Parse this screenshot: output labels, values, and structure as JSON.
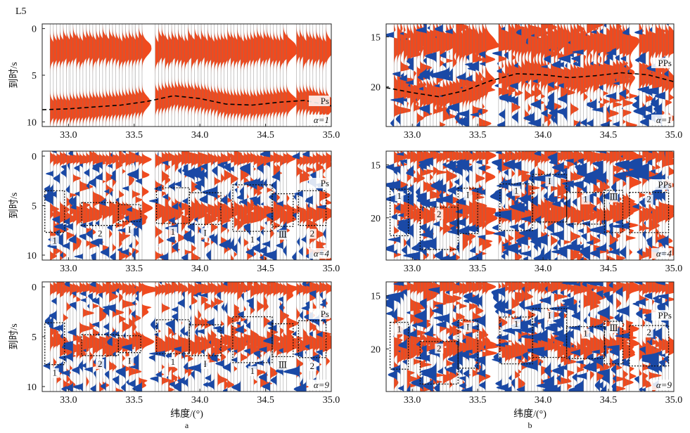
{
  "colors": {
    "positive": "#f04a1e",
    "negative": "#1a49a6",
    "frame": "#222222",
    "box": "#111111",
    "curve": "#000000"
  },
  "xlabel": "纬度/(°)",
  "station": "L5",
  "panel_labels": [
    "a",
    "b"
  ],
  "chart_data": [
    {
      "type": "wiggle-section",
      "id": "a1",
      "column": "a",
      "row": 1,
      "x_ticks": [
        "33.0",
        "33.5",
        "34.0",
        "34.5",
        "35.0"
      ],
      "xlim": [
        32.8,
        35.0
      ],
      "y_ticks": [
        "0",
        "5",
        "10"
      ],
      "ylim": [
        -0.5,
        10.5
      ],
      "ylabel": "到时/s",
      "phase": "Ps",
      "alpha": "α=1",
      "station": "L5",
      "pulse_times": [
        2.2,
        8.2
      ],
      "curve": {
        "x": [
          32.8,
          33.0,
          33.2,
          33.4,
          33.6,
          33.8,
          34.0,
          34.2,
          34.4,
          34.6,
          34.8,
          35.0
        ],
        "y": [
          8.7,
          8.6,
          8.4,
          8.2,
          7.8,
          7.2,
          7.5,
          8.1,
          8.2,
          7.9,
          7.7,
          8.3
        ]
      },
      "boxes": []
    },
    {
      "type": "wiggle-section",
      "id": "a2",
      "column": "a",
      "row": 2,
      "x_ticks": [
        "33.0",
        "33.5",
        "34.0",
        "34.5",
        "35.0"
      ],
      "xlim": [
        32.8,
        35.0
      ],
      "y_ticks": [
        "0",
        "5",
        "10"
      ],
      "ylim": [
        -0.5,
        10.5
      ],
      "ylabel": "到时/s",
      "phase": "Ps",
      "alpha": "α=4",
      "pulse_times": [
        0.3,
        5.8
      ],
      "boxes": [
        {
          "label": "1",
          "x0": 32.82,
          "x1": 32.97,
          "t0": 3.5,
          "t1": 7.7
        },
        {
          "label": "2",
          "x0": 33.1,
          "x1": 33.38,
          "t0": 4.7,
          "t1": 7.0
        },
        {
          "label": "I",
          "x0": 33.38,
          "x1": 33.55,
          "t0": 4.9,
          "t1": 6.6
        },
        {
          "label": "1",
          "x0": 33.67,
          "x1": 33.92,
          "t0": 3.2,
          "t1": 6.8
        },
        {
          "label": "I",
          "x0": 33.92,
          "x1": 34.16,
          "t0": 3.7,
          "t1": 6.9
        },
        {
          "label": "1",
          "x0": 34.25,
          "x1": 34.55,
          "t0": 2.9,
          "t1": 7.6
        },
        {
          "label": "Ⅲ",
          "x0": 34.55,
          "x1": 34.71,
          "t0": 3.8,
          "t1": 7.1
        },
        {
          "label": "2",
          "x0": 34.75,
          "x1": 34.96,
          "t0": 3.5,
          "t1": 7.0
        }
      ]
    },
    {
      "type": "wiggle-section",
      "id": "a3",
      "column": "a",
      "row": 3,
      "x_ticks": [
        "33.0",
        "33.5",
        "34.0",
        "34.5",
        "35.0"
      ],
      "xlim": [
        32.8,
        35.0
      ],
      "y_ticks": [
        "0",
        "5",
        "10"
      ],
      "ylim": [
        -0.5,
        10.5
      ],
      "ylabel": "到时/s",
      "phase": "Ps",
      "alpha": "α=9",
      "show_xlabel": true,
      "panel_label": "a",
      "pulse_times": [
        0.2,
        5.8
      ],
      "boxes": [
        {
          "label": "1",
          "x0": 32.82,
          "x1": 32.97,
          "t0": 3.6,
          "t1": 7.8
        },
        {
          "label": "2",
          "x0": 33.1,
          "x1": 33.38,
          "t0": 4.8,
          "t1": 6.9
        },
        {
          "label": "I",
          "x0": 33.38,
          "x1": 33.55,
          "t0": 4.9,
          "t1": 6.6
        },
        {
          "label": "1",
          "x0": 33.67,
          "x1": 33.92,
          "t0": 3.3,
          "t1": 6.7
        },
        {
          "label": "I",
          "x0": 33.92,
          "x1": 34.16,
          "t0": 3.8,
          "t1": 6.9
        },
        {
          "label": "1",
          "x0": 34.25,
          "x1": 34.55,
          "t0": 3.0,
          "t1": 7.6
        },
        {
          "label": "Ⅲ",
          "x0": 34.55,
          "x1": 34.71,
          "t0": 3.7,
          "t1": 7.0
        },
        {
          "label": "2",
          "x0": 34.75,
          "x1": 34.96,
          "t0": 3.4,
          "t1": 7.1
        }
      ]
    },
    {
      "type": "wiggle-section",
      "id": "b1",
      "column": "b",
      "row": 1,
      "x_ticks": [
        "33.0",
        "33.5",
        "34.0",
        "34.5",
        "35.0"
      ],
      "xlim": [
        32.8,
        35.0
      ],
      "y_ticks": [
        "15",
        "20"
      ],
      "ylim": [
        13.7,
        24.0
      ],
      "phase": "PPs",
      "alpha": "α=1",
      "pulse_times": [
        15.5,
        20.3
      ],
      "curve": {
        "x": [
          32.8,
          33.0,
          33.2,
          33.4,
          33.6,
          33.8,
          34.0,
          34.2,
          34.4,
          34.6,
          34.8,
          35.0
        ],
        "y": [
          20.1,
          20.6,
          21.0,
          20.4,
          19.4,
          18.7,
          18.8,
          19.1,
          18.9,
          18.6,
          18.8,
          19.5
        ]
      },
      "boxes": []
    },
    {
      "type": "wiggle-section",
      "id": "b2",
      "column": "b",
      "row": 2,
      "x_ticks": [
        "33.0",
        "33.5",
        "34.0",
        "34.5",
        "35.0"
      ],
      "xlim": [
        32.8,
        35.0
      ],
      "y_ticks": [
        "15",
        "20"
      ],
      "ylim": [
        13.7,
        24.0
      ],
      "phase": "PPs",
      "alpha": "α=4",
      "pulse_times": [
        14.2,
        19.5
      ],
      "boxes": [
        {
          "label": "1",
          "x0": 32.83,
          "x1": 32.97,
          "t0": 17.3,
          "t1": 21.7
        },
        {
          "label": "2",
          "x0": 33.06,
          "x1": 33.35,
          "t0": 19.0,
          "t1": 23.0
        },
        {
          "label": "I",
          "x0": 33.35,
          "x1": 33.5,
          "t0": 17.2,
          "t1": 21.5
        },
        {
          "label": "1",
          "x0": 33.67,
          "x1": 33.92,
          "t0": 16.8,
          "t1": 21.2
        },
        {
          "label": "I",
          "x0": 33.92,
          "x1": 34.18,
          "t0": 15.9,
          "t1": 20.4
        },
        {
          "label": "1",
          "x0": 34.18,
          "x1": 34.47,
          "t0": 17.6,
          "t1": 20.6
        },
        {
          "label": "Ⅲ",
          "x0": 34.47,
          "x1": 34.61,
          "t0": 17.4,
          "t1": 21.4
        },
        {
          "label": "2",
          "x0": 34.66,
          "x1": 34.96,
          "t0": 17.6,
          "t1": 21.4
        }
      ]
    },
    {
      "type": "wiggle-section",
      "id": "b3",
      "column": "b",
      "row": 3,
      "x_ticks": [
        "33.0",
        "33.5",
        "34.0",
        "34.5",
        "35.0"
      ],
      "xlim": [
        32.8,
        35.0
      ],
      "y_ticks": [
        "15",
        "20"
      ],
      "ylim": [
        13.7,
        24.0
      ],
      "phase": "PPs",
      "alpha": "α=9",
      "show_xlabel": true,
      "panel_label": "b",
      "pulse_times": [
        14.2,
        19.8
      ],
      "boxes": [
        {
          "label": "1",
          "x0": 32.83,
          "x1": 32.97,
          "t0": 17.5,
          "t1": 21.9
        },
        {
          "label": "2",
          "x0": 33.06,
          "x1": 33.35,
          "t0": 19.3,
          "t1": 23.3
        },
        {
          "label": "I",
          "x0": 33.35,
          "x1": 33.5,
          "t0": 17.3,
          "t1": 21.8
        },
        {
          "label": "1",
          "x0": 33.67,
          "x1": 33.92,
          "t0": 17.0,
          "t1": 21.4
        },
        {
          "label": "I",
          "x0": 33.92,
          "x1": 34.18,
          "t0": 16.2,
          "t1": 20.8
        },
        {
          "label": "1",
          "x0": 34.18,
          "x1": 34.47,
          "t0": 17.9,
          "t1": 20.9
        },
        {
          "label": "Ⅲ",
          "x0": 34.47,
          "x1": 34.61,
          "t0": 17.4,
          "t1": 21.4
        },
        {
          "label": "2",
          "x0": 34.66,
          "x1": 34.96,
          "t0": 17.8,
          "t1": 21.6
        }
      ]
    }
  ]
}
